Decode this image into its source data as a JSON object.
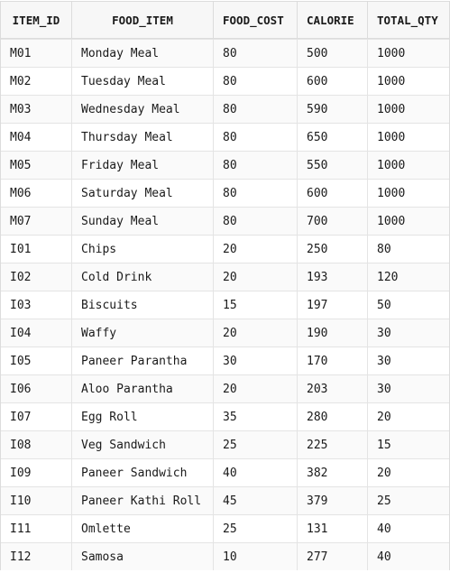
{
  "table": {
    "headers": {
      "item_id": "ITEM_ID",
      "food_item": "FOOD_ITEM",
      "food_cost": "FOOD_COST",
      "calorie": "CALORIE",
      "total_qty": "TOTAL_QTY"
    },
    "rows": [
      {
        "item_id": "M01",
        "food_item": "Monday Meal",
        "food_cost": "80",
        "calorie": "500",
        "total_qty": "1000"
      },
      {
        "item_id": "M02",
        "food_item": "Tuesday Meal",
        "food_cost": "80",
        "calorie": "600",
        "total_qty": "1000"
      },
      {
        "item_id": "M03",
        "food_item": "Wednesday Meal",
        "food_cost": "80",
        "calorie": "590",
        "total_qty": "1000"
      },
      {
        "item_id": "M04",
        "food_item": "Thursday Meal",
        "food_cost": "80",
        "calorie": "650",
        "total_qty": "1000"
      },
      {
        "item_id": "M05",
        "food_item": "Friday Meal",
        "food_cost": "80",
        "calorie": "550",
        "total_qty": "1000"
      },
      {
        "item_id": "M06",
        "food_item": "Saturday Meal",
        "food_cost": "80",
        "calorie": "600",
        "total_qty": "1000"
      },
      {
        "item_id": "M07",
        "food_item": "Sunday Meal",
        "food_cost": "80",
        "calorie": "700",
        "total_qty": "1000"
      },
      {
        "item_id": "I01",
        "food_item": "Chips",
        "food_cost": "20",
        "calorie": "250",
        "total_qty": "80"
      },
      {
        "item_id": "I02",
        "food_item": "Cold Drink",
        "food_cost": "20",
        "calorie": "193",
        "total_qty": "120"
      },
      {
        "item_id": "I03",
        "food_item": "Biscuits",
        "food_cost": "15",
        "calorie": "197",
        "total_qty": "50"
      },
      {
        "item_id": "I04",
        "food_item": "Waffy",
        "food_cost": "20",
        "calorie": "190",
        "total_qty": "30"
      },
      {
        "item_id": "I05",
        "food_item": "Paneer Parantha",
        "food_cost": "30",
        "calorie": "170",
        "total_qty": "30"
      },
      {
        "item_id": "I06",
        "food_item": "Aloo Parantha",
        "food_cost": "20",
        "calorie": "203",
        "total_qty": "30"
      },
      {
        "item_id": "I07",
        "food_item": "Egg Roll",
        "food_cost": "35",
        "calorie": "280",
        "total_qty": "20"
      },
      {
        "item_id": "I08",
        "food_item": "Veg Sandwich",
        "food_cost": "25",
        "calorie": "225",
        "total_qty": "15"
      },
      {
        "item_id": "I09",
        "food_item": "Paneer Sandwich",
        "food_cost": "40",
        "calorie": "382",
        "total_qty": "20"
      },
      {
        "item_id": "I10",
        "food_item": "Paneer Kathi Roll",
        "food_cost": "45",
        "calorie": "379",
        "total_qty": "25"
      },
      {
        "item_id": "I11",
        "food_item": "Omlette",
        "food_cost": "25",
        "calorie": "131",
        "total_qty": "40"
      },
      {
        "item_id": "I12",
        "food_item": "Samosa",
        "food_cost": "10",
        "calorie": "277",
        "total_qty": "40"
      }
    ]
  }
}
